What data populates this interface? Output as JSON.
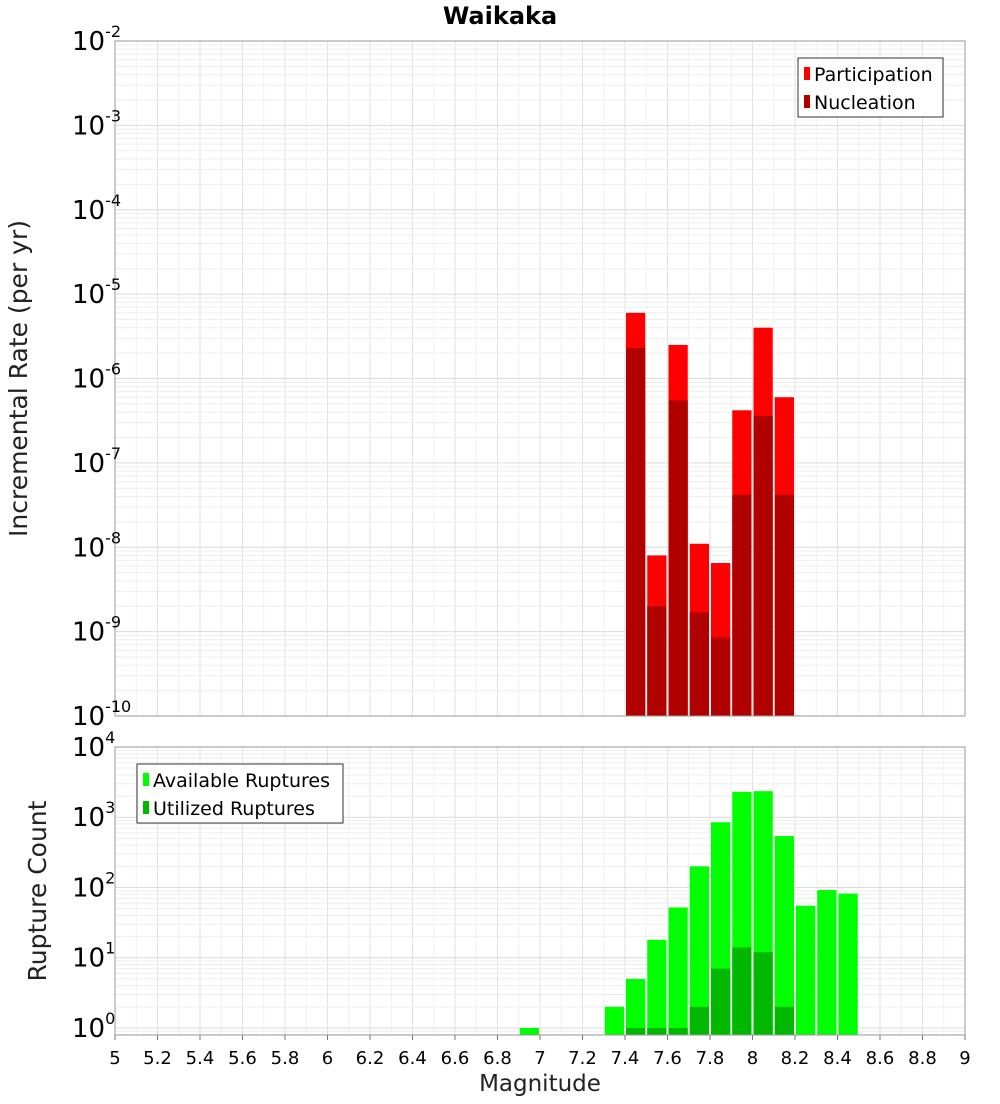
{
  "chart_data": [
    {
      "type": "bar",
      "title": "Waikaka",
      "xlabel": "",
      "ylabel": "Incremental Rate (per yr)",
      "yscale": "log",
      "ylim_exp": [
        -10,
        -2
      ],
      "y_ticks": [
        {
          "base": "10",
          "exp": "-10"
        },
        {
          "base": "10",
          "exp": "-9"
        },
        {
          "base": "10",
          "exp": "-8"
        },
        {
          "base": "10",
          "exp": "-7"
        },
        {
          "base": "10",
          "exp": "-6"
        },
        {
          "base": "10",
          "exp": "-5"
        },
        {
          "base": "10",
          "exp": "-4"
        },
        {
          "base": "10",
          "exp": "-3"
        },
        {
          "base": "10",
          "exp": "-2"
        }
      ],
      "xlim": [
        5,
        9
      ],
      "bin_width": 0.1,
      "legend_position": "top-right",
      "legend": [
        "Participation",
        "Nucleation"
      ],
      "series": [
        {
          "name": "Participation",
          "color": "#ff0000",
          "x": [
            7.45,
            7.55,
            7.65,
            7.75,
            7.85,
            7.95,
            8.05,
            8.15
          ],
          "values": [
            6e-06,
            8e-09,
            2.5e-06,
            1.1e-08,
            6.5e-09,
            4.2e-07,
            4e-06,
            6e-07
          ]
        },
        {
          "name": "Nucleation",
          "color": "#b00000",
          "x": [
            7.45,
            7.55,
            7.65,
            7.75,
            7.85,
            7.95,
            8.05,
            8.15
          ],
          "values": [
            2.3e-06,
            2e-09,
            5.5e-07,
            1.7e-09,
            8.5e-10,
            4.2e-08,
            3.6e-07,
            4.2e-08
          ]
        }
      ]
    },
    {
      "type": "bar",
      "title": "",
      "xlabel": "Magnitude",
      "ylabel": "Rupture Count",
      "yscale": "log",
      "ylim_exp": [
        -0.1,
        4
      ],
      "y_ticks": [
        {
          "base": "10",
          "exp": "0",
          "value": 0
        },
        {
          "base": "10",
          "exp": "1",
          "value": 1
        },
        {
          "base": "10",
          "exp": "2",
          "value": 2
        },
        {
          "base": "10",
          "exp": "3",
          "value": 3
        },
        {
          "base": "10",
          "exp": "4",
          "value": 4
        }
      ],
      "xlim": [
        5,
        9
      ],
      "x_ticks": [
        "5",
        "5.2",
        "5.4",
        "5.6",
        "5.8",
        "6",
        "6.2",
        "6.4",
        "6.6",
        "6.8",
        "7",
        "7.2",
        "7.4",
        "7.6",
        "7.8",
        "8",
        "8.2",
        "8.4",
        "8.6",
        "8.8",
        "9"
      ],
      "bin_width": 0.1,
      "legend_position": "top-left",
      "legend": [
        "Available Ruptures",
        "Utilized Ruptures"
      ],
      "series": [
        {
          "name": "Available Ruptures",
          "color": "#00ff00",
          "x": [
            6.95,
            7.35,
            7.45,
            7.55,
            7.65,
            7.75,
            7.85,
            7.95,
            8.05,
            8.15,
            8.25,
            8.35,
            8.45
          ],
          "values": [
            1,
            2,
            5,
            18,
            52,
            200,
            850,
            2300,
            2350,
            540,
            55,
            92,
            82
          ]
        },
        {
          "name": "Utilized Ruptures",
          "color": "#00b800",
          "x": [
            7.45,
            7.55,
            7.65,
            7.75,
            7.85,
            7.95,
            8.05,
            8.15
          ],
          "values": [
            1,
            1,
            1,
            2,
            7,
            14,
            12,
            2
          ]
        }
      ]
    }
  ]
}
